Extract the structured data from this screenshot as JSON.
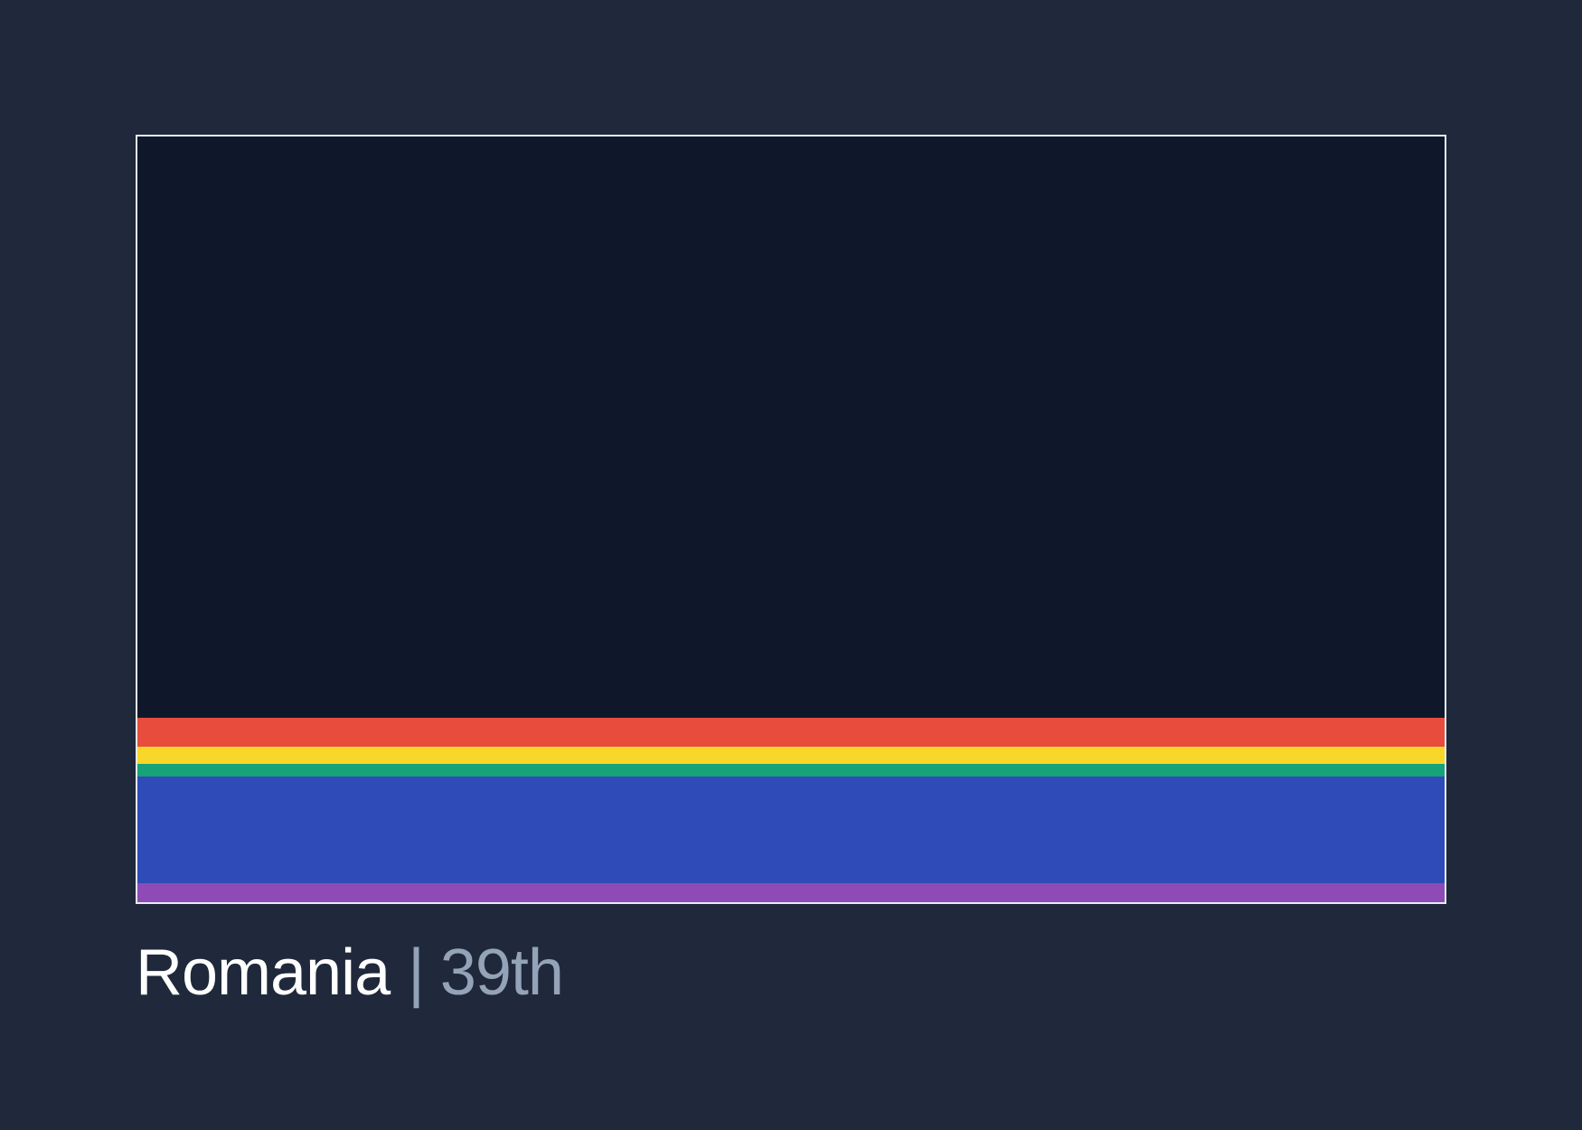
{
  "stripes": [
    {
      "color": "#e74c3c"
    },
    {
      "color": "#f8d72a"
    },
    {
      "color": "#16a37a"
    },
    {
      "color": "#2f4bb8"
    },
    {
      "color": "#8e4bb6"
    }
  ],
  "caption": {
    "country": "Romania",
    "separator": "|",
    "rank": "39th"
  }
}
